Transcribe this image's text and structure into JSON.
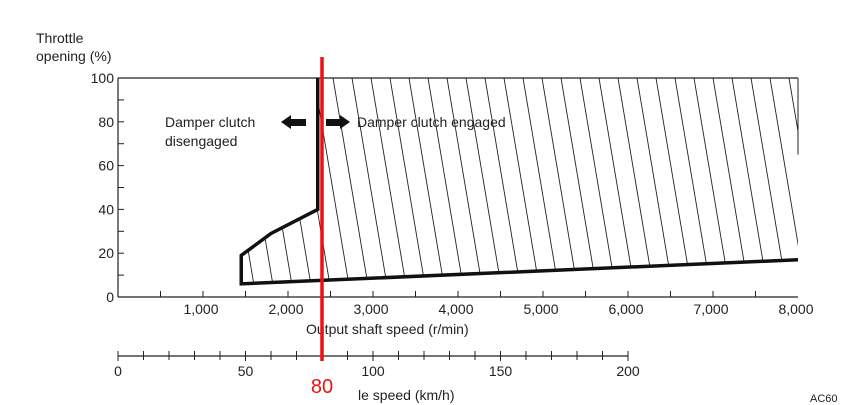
{
  "chart_data": {
    "type": "area",
    "title": "",
    "ylabel_line1": "Throttle",
    "ylabel_line2": "opening (%)",
    "xlabel": "Output shaft speed (r/min)",
    "xlim": [
      0,
      8000
    ],
    "ylim": [
      0,
      100
    ],
    "x_ticks": [
      0,
      1000,
      2000,
      3000,
      4000,
      5000,
      6000,
      7000,
      8000
    ],
    "x_tick_labels": [
      "0",
      "1,000",
      "2,000",
      "3,000",
      "4,000",
      "5,000",
      "6,000",
      "7,000",
      "8,000"
    ],
    "y_ticks": [
      0,
      20,
      40,
      60,
      80,
      100
    ],
    "y_tick_labels": [
      "0",
      "20",
      "40",
      "60",
      "80",
      "100"
    ],
    "boundary": [
      [
        8000,
        17
      ],
      [
        1450,
        6
      ],
      [
        1450,
        19
      ],
      [
        1800,
        29
      ],
      [
        2350,
        40
      ],
      [
        2350,
        100
      ]
    ],
    "regions": [
      {
        "name": "Damper clutch engaged",
        "fill": "hatched"
      },
      {
        "name": "Damper clutch",
        "name2": "disengaged",
        "fill": "none"
      }
    ],
    "secondary_axis": {
      "label": "le speed (km/h)",
      "range": [
        0,
        200
      ],
      "tick_labels": [
        "0",
        "50",
        "100",
        "150",
        "200"
      ],
      "tick_values": [
        0,
        50,
        100,
        150,
        200
      ]
    },
    "marker": {
      "value_kmh": 80,
      "label": "80",
      "color": "#ee1111"
    },
    "corner_code": "AC60"
  }
}
